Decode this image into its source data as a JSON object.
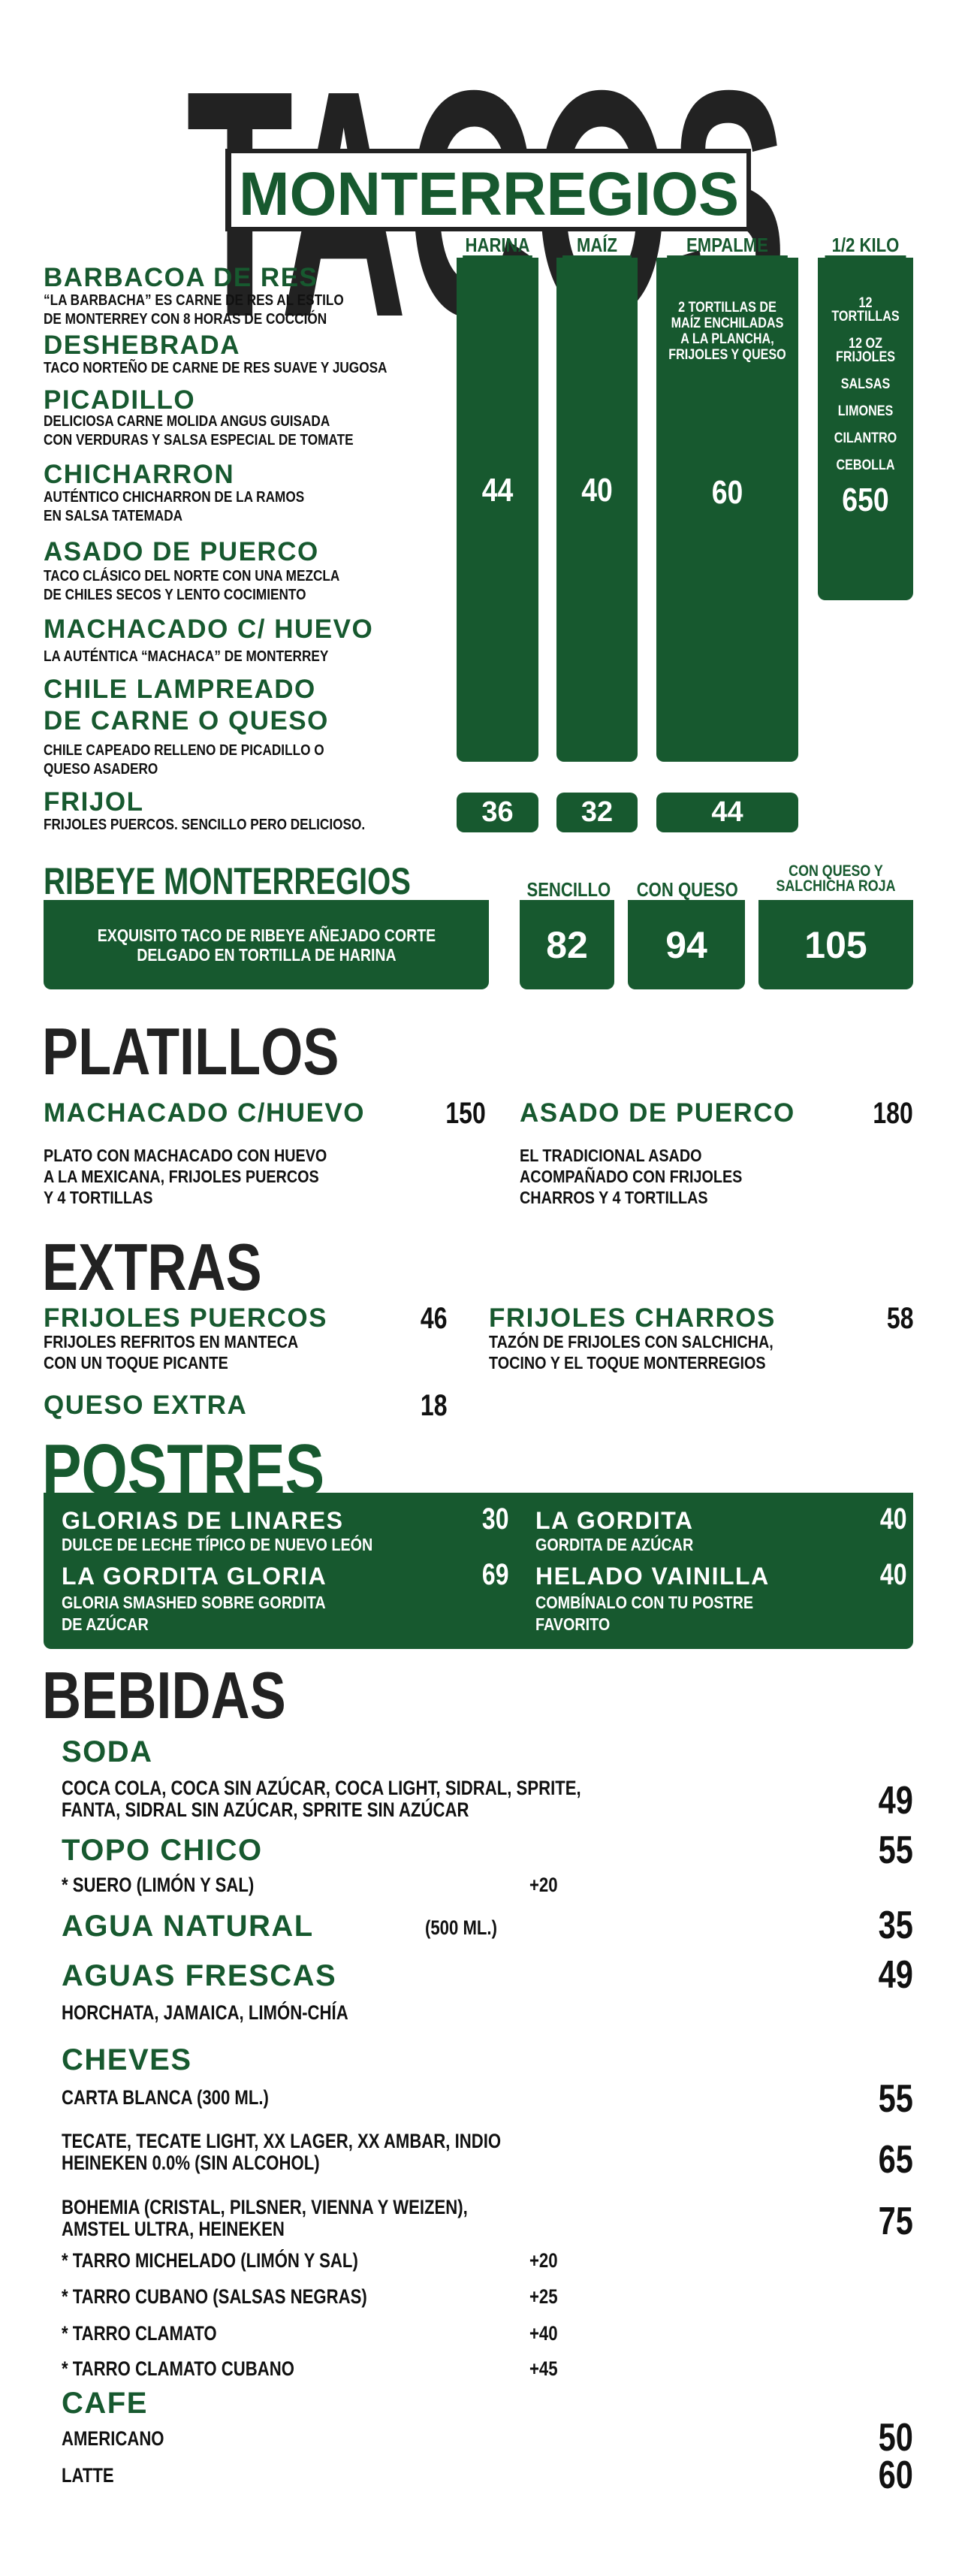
{
  "logo": {
    "word_big": "TACOS",
    "word_box": "MONTERREGIOS"
  },
  "colors": {
    "brand_green": "#17592f",
    "text": "#111111"
  },
  "tacos": {
    "columns": [
      "HARINA",
      "MAÍZ",
      "EMPALME",
      "1/2 KILO"
    ],
    "items": [
      {
        "name": "BARBACOA DE RES",
        "desc": "“LA BARBACHA” ES CARNE DE RES AL ESTILO\nDE MONTERREY CON 8 HORAS DE COCCIÓN"
      },
      {
        "name": "DESHEBRADA",
        "desc": "TACO NORTEÑO DE CARNE DE RES SUAVE Y JUGOSA"
      },
      {
        "name": "PICADILLO",
        "desc": "DELICIOSA CARNE MOLIDA ANGUS GUISADA\nCON VERDURAS Y SALSA ESPECIAL DE TOMATE"
      },
      {
        "name": "CHICHARRON",
        "desc": "AUTÉNTICO CHICHARRON DE LA RAMOS\nEN SALSA TATEMADA"
      },
      {
        "name": "ASADO DE PUERCO",
        "desc": "TACO CLÁSICO DEL NORTE CON UNA MEZCLA\nDE CHILES SECOS Y LENTO COCIMIENTO"
      },
      {
        "name": "MACHACADO C/ HUEVO",
        "desc": "LA AUTÉNTICA “MACHACA” DE MONTERREY"
      },
      {
        "name": "CHILE LAMPREADO\nDE CARNE O QUESO",
        "desc": "CHILE CAPEADO RELLENO DE PICADILLO O\nQUESO ASADERO"
      },
      {
        "name": "FRIJOL",
        "desc": "FRIJOLES PUERCOS. SENCILLO PERO DELICIOSO."
      }
    ],
    "empalme_desc": "2 TORTILLAS DE\nMAÍZ ENCHILADAS\nA LA PLANCHA,\nFRIJOLES Y QUESO",
    "kilo_desc": "12\nTORTILLAS\n\n12 OZ\nFRIJOLES\n\nSALSAS\n\nLIMONES\n\nCILANTRO\n\nCEBOLLA",
    "prices": {
      "harina": "44",
      "maiz": "40",
      "empalme": "60",
      "medio_kilo": "650"
    },
    "frijol_prices": {
      "harina": "36",
      "maiz": "32",
      "empalme": "44"
    }
  },
  "ribeye": {
    "title": "RIBEYE MONTERREGIOS",
    "desc": "EXQUISITO TACO DE RIBEYE AÑEJADO CORTE\nDELGADO EN TORTILLA DE HARINA",
    "options": [
      {
        "label": "SENCILLO",
        "price": "82"
      },
      {
        "label": "CON QUESO",
        "price": "94"
      },
      {
        "label": "CON QUESO Y\nSALCHICHA ROJA",
        "price": "105"
      }
    ]
  },
  "platillos": {
    "title": "PLATILLOS",
    "items": [
      {
        "name": "MACHACADO C/HUEVO",
        "price": "150",
        "desc": "PLATO CON MACHACADO CON HUEVO\nA LA MEXICANA, FRIJOLES PUERCOS\nY 4 TORTILLAS"
      },
      {
        "name": "ASADO DE PUERCO",
        "price": "180",
        "desc": "EL TRADICIONAL ASADO\nACOMPAÑADO CON FRIJOLES\nCHARROS Y 4 TORTILLAS"
      }
    ]
  },
  "extras": {
    "title": "EXTRAS",
    "items": [
      {
        "name": "FRIJOLES PUERCOS",
        "price": "46",
        "desc": "FRIJOLES REFRITOS EN MANTECA\nCON UN TOQUE PICANTE"
      },
      {
        "name": "FRIJOLES CHARROS",
        "price": "58",
        "desc": "TAZÓN DE FRIJOLES CON SALCHICHA,\nTOCINO Y EL TOQUE MONTERREGIOS"
      },
      {
        "name": "QUESO EXTRA",
        "price": "18"
      }
    ]
  },
  "postres": {
    "title": "POSTRES",
    "items": [
      {
        "name": "GLORIAS DE LINARES",
        "price": "30",
        "desc": "DULCE DE LECHE TÍPICO DE NUEVO LEÓN"
      },
      {
        "name": "LA GORDITA",
        "price": "40",
        "desc": "GORDITA DE AZÚCAR"
      },
      {
        "name": "LA GORDITA GLORIA",
        "price": "69",
        "desc": "GLORIA SMASHED SOBRE GORDITA\nDE AZÚCAR"
      },
      {
        "name": "HELADO VAINILLA",
        "price": "40",
        "desc": "COMBÍNALO CON TU POSTRE\nFAVORITO"
      }
    ]
  },
  "bebidas": {
    "title": "BEBIDAS",
    "soda": {
      "name": "SODA",
      "desc": "COCA COLA, COCA SIN AZÚCAR, COCA LIGHT, SIDRAL, SPRITE,\nFANTA, SIDRAL SIN AZÚCAR, SPRITE SIN AZÚCAR",
      "price": "49"
    },
    "topo_chico": {
      "name": "TOPO CHICO",
      "price": "55",
      "extra": "* SUERO (LIMÓN Y SAL)",
      "extra_price": "+20"
    },
    "agua_natural": {
      "name": "AGUA NATURAL",
      "size": "(500 ML.)",
      "price": "35"
    },
    "aguas_frescas": {
      "name": "AGUAS FRESCAS",
      "price": "49",
      "desc": "HORCHATA, JAMAICA, LIMÓN-CHÍA"
    },
    "cheves": {
      "name": "CHEVES",
      "items": [
        {
          "desc": "CARTA BLANCA (300 ML.)",
          "price": "55"
        },
        {
          "desc": "TECATE, TECATE LIGHT, XX LAGER, XX AMBAR, INDIO\nHEINEKEN 0.0% (SIN ALCOHOL)",
          "price": "65"
        },
        {
          "desc": "BOHEMIA (CRISTAL, PILSNER, VIENNA Y WEIZEN),\nAMSTEL ULTRA, HEINEKEN",
          "price": "75"
        }
      ],
      "extras": [
        {
          "label": "* TARRO MICHELADO (LIMÓN Y SAL)",
          "price": "+20"
        },
        {
          "label": "* TARRO CUBANO (SALSAS NEGRAS)",
          "price": "+25"
        },
        {
          "label": "* TARRO CLAMATO",
          "price": "+40"
        },
        {
          "label": "* TARRO CLAMATO CUBANO",
          "price": "+45"
        }
      ]
    },
    "cafe": {
      "name": "CAFE",
      "items": [
        {
          "name": "AMERICANO",
          "price": "50"
        },
        {
          "name": "LATTE",
          "price": "60"
        }
      ]
    }
  }
}
